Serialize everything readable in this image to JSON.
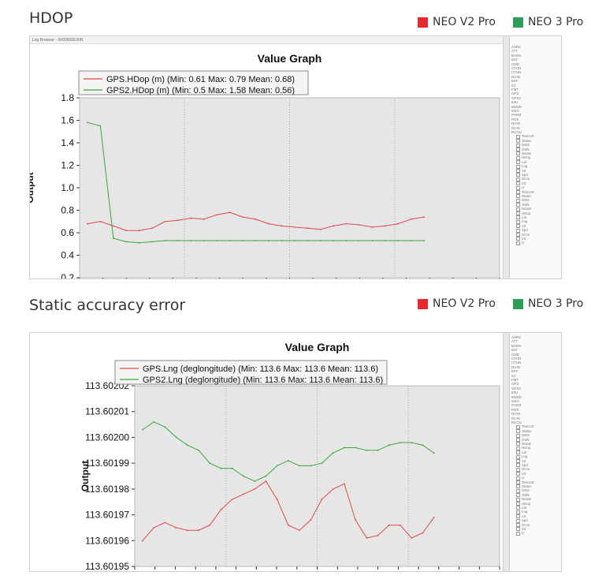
{
  "sections": [
    {
      "title": "HDOP"
    },
    {
      "title": "Static accuracy error"
    }
  ],
  "legend": [
    {
      "label": "NEO V2  Pro",
      "color": "#e8282b"
    },
    {
      "label": "NEO 3 Pro",
      "color": "#2e9e5b"
    }
  ],
  "window_title": "Log Browser - 00000066.BIN",
  "sidebar_labels": [
    "AHR2",
    "ATT",
    "BARO",
    "BAT",
    "CMD",
    "CTUN",
    "CTUN",
    "DU32",
    "EKF",
    "EV",
    "FMT",
    "GPS",
    "GPS2",
    "IMU",
    "MODE",
    "MSG",
    "PARM",
    "POS",
    "RATE",
    "RCIN",
    "RCOU"
  ],
  "sidebar_fields": [
    "TimeUS",
    "Status",
    "GMS",
    "GWk",
    "NSats",
    "HDop",
    "Lat",
    "Lng",
    "Alt",
    "Spd",
    "GCrs",
    "VZ",
    "U"
  ],
  "chart_data": [
    {
      "type": "line",
      "title": "Value Graph",
      "ylabel": "Output",
      "ylim": [
        0.2,
        1.8
      ],
      "yticks": [
        "0.2",
        "0.4",
        "0.6",
        "0.8",
        "1.0",
        "1.2",
        "1.4",
        "1.6",
        "1.8"
      ],
      "grid": true,
      "legend_placement": "top-left",
      "x": [
        0,
        5,
        10,
        15,
        20,
        25,
        30,
        35,
        40,
        45,
        50,
        55,
        60,
        65,
        70,
        75,
        80,
        85,
        90,
        95,
        100,
        105,
        110,
        115,
        120,
        125,
        130
      ],
      "series": [
        {
          "name": "GPS.HDop (m) (Min: 0.61 Max: 0.79 Mean: 0.68)",
          "color": "#e34848",
          "values": [
            0.68,
            0.7,
            0.66,
            0.62,
            0.62,
            0.64,
            0.7,
            0.71,
            0.73,
            0.72,
            0.76,
            0.78,
            0.74,
            0.72,
            0.68,
            0.66,
            0.65,
            0.64,
            0.63,
            0.66,
            0.68,
            0.67,
            0.65,
            0.66,
            0.68,
            0.72,
            0.74
          ]
        },
        {
          "name": "GPS2.HDop (m) (Min: 0.5 Max: 1.58 Mean: 0.56)",
          "color": "#3aa63a",
          "values": [
            1.58,
            1.55,
            0.55,
            0.52,
            0.51,
            0.52,
            0.53,
            0.53,
            0.53,
            0.53,
            0.53,
            0.53,
            0.53,
            0.53,
            0.53,
            0.53,
            0.53,
            0.53,
            0.53,
            0.53,
            0.53,
            0.53,
            0.53,
            0.53,
            0.53,
            0.53,
            0.53
          ]
        }
      ]
    },
    {
      "type": "line",
      "title": "Value Graph",
      "ylabel": "Output",
      "ylim": [
        113.60195,
        113.60202
      ],
      "yticks": [
        "113.60195",
        "113.60196",
        "113.60197",
        "113.60198",
        "113.60199",
        "113.60200",
        "113.60201",
        "113.60202"
      ],
      "grid": true,
      "legend_placement": "top-left",
      "x": [
        0,
        5,
        10,
        15,
        20,
        25,
        30,
        35,
        40,
        45,
        50,
        55,
        60,
        65,
        70,
        75,
        80,
        85,
        90,
        95,
        100,
        105,
        110,
        115,
        120,
        125,
        130
      ],
      "series": [
        {
          "name": "GPS.Lng (deglongitude) (Min: 113.6 Max: 113.6 Mean: 113.6)",
          "color": "#e34848",
          "values": [
            113.60196,
            113.601965,
            113.601967,
            113.601965,
            113.601964,
            113.601964,
            113.601966,
            113.601972,
            113.601976,
            113.601978,
            113.60198,
            113.601983,
            113.601976,
            113.601966,
            113.601964,
            113.601968,
            113.601976,
            113.60198,
            113.601982,
            113.601968,
            113.601961,
            113.601962,
            113.601966,
            113.601966,
            113.601961,
            113.601963,
            113.601969
          ]
        },
        {
          "name": "GPS2.Lng (deglongitude) (Min: 113.6 Max: 113.6 Mean: 113.6)",
          "color": "#3aa63a",
          "values": [
            113.602003,
            113.602006,
            113.602004,
            113.602,
            113.601997,
            113.601995,
            113.60199,
            113.601988,
            113.601988,
            113.601985,
            113.601983,
            113.601985,
            113.601989,
            113.601991,
            113.601989,
            113.601989,
            113.60199,
            113.601994,
            113.601996,
            113.601996,
            113.601995,
            113.601995,
            113.601997,
            113.601998,
            113.601998,
            113.601997,
            113.601994
          ]
        }
      ]
    }
  ]
}
